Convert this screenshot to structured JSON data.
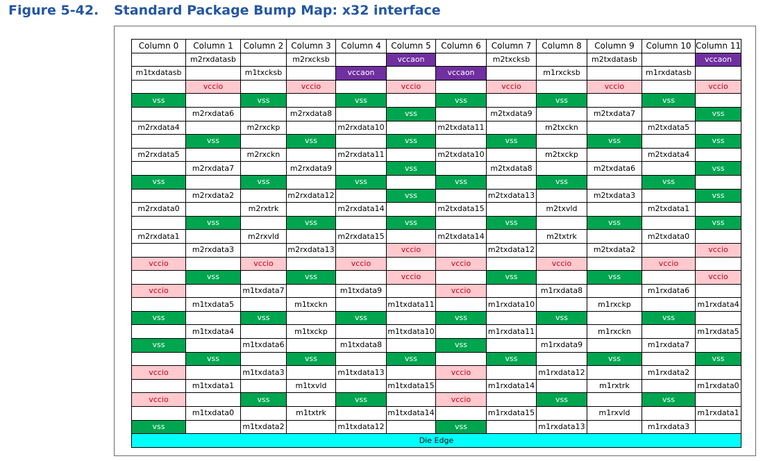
{
  "figure": {
    "number": "Figure 5-42.",
    "title": "Standard Package Bump Map: x32 interface"
  },
  "colors": {
    "vss": "#00a550",
    "vccio": "#ffc9ce",
    "vccaon": "#7030a0",
    "die_edge": "#00ffff",
    "title": "#2456a4"
  },
  "table": {
    "headers": [
      "Column 0",
      "Column 1",
      "Column 2",
      "Column 3",
      "Column 4",
      "Column 5",
      "Column 6",
      "Column 7",
      "Column 8",
      "Column 9",
      "Column 10",
      "Column 11"
    ],
    "rows": [
      [
        "",
        "m2rxdatasb",
        "",
        "m2rxcksb",
        "",
        "vccaon",
        "",
        "m2txcksb",
        "",
        "m2txdatasb",
        "",
        "vccaon"
      ],
      [
        "m1txdatasb",
        "",
        "m1txcksb",
        "",
        "vccaon",
        "",
        "vccaon",
        "",
        "m1rxcksb",
        "",
        "m1rxdatasb",
        ""
      ],
      [
        "",
        "vccio",
        "",
        "vccio",
        "",
        "vccio",
        "",
        "vccio",
        "",
        "vccio",
        "",
        "vccio"
      ],
      [
        "vss",
        "",
        "vss",
        "",
        "vss",
        "",
        "vss",
        "",
        "vss",
        "",
        "vss",
        ""
      ],
      [
        "",
        "m2rxdata6",
        "",
        "m2rxdata8",
        "",
        "vss",
        "",
        "m2txdata9",
        "",
        "m2txdata7",
        "",
        "vss"
      ],
      [
        "m2rxdata4",
        "",
        "m2rxckp",
        "",
        "m2rxdata10",
        "",
        "m2txdata11",
        "",
        "m2txckn",
        "",
        "m2txdata5",
        ""
      ],
      [
        "",
        "vss",
        "",
        "vss",
        "",
        "vss",
        "",
        "vss",
        "",
        "vss",
        "",
        "vss"
      ],
      [
        "m2rxdata5",
        "",
        "m2rxckn",
        "",
        "m2rxdata11",
        "",
        "m2txdata10",
        "",
        "m2txckp",
        "",
        "m2txdata4",
        ""
      ],
      [
        "",
        "m2rxdata7",
        "",
        "m2rxdata9",
        "",
        "vss",
        "",
        "m2txdata8",
        "",
        "m2txdata6",
        "",
        "vss"
      ],
      [
        "vss",
        "",
        "vss",
        "",
        "vss",
        "",
        "vss",
        "",
        "vss",
        "",
        "vss",
        ""
      ],
      [
        "",
        "m2rxdata2",
        "",
        "m2rxdata12",
        "",
        "vss",
        "",
        "m2txdata13",
        "",
        "m2txdata3",
        "",
        "vss"
      ],
      [
        "m2rxdata0",
        "",
        "m2rxtrk",
        "",
        "m2rxdata14",
        "",
        "m2txdata15",
        "",
        "m2txvld",
        "",
        "m2txdata1",
        ""
      ],
      [
        "",
        "vss",
        "",
        "vss",
        "",
        "vss",
        "",
        "vss",
        "",
        "vss",
        "",
        "vss"
      ],
      [
        "m2rxdata1",
        "",
        "m2rxvld",
        "",
        "m2rxdata15",
        "",
        "m2txdata14",
        "",
        "m2txtrk",
        "",
        "m2txdata0",
        ""
      ],
      [
        "",
        "m2rxdata3",
        "",
        "m2rxdata13",
        "",
        "vccio",
        "",
        "m2txdata12",
        "",
        "m2txdata2",
        "",
        "vccio"
      ],
      [
        "vccio",
        "",
        "vccio",
        "",
        "vccio",
        "",
        "vccio",
        "",
        "vccio",
        "",
        "vccio",
        ""
      ],
      [
        "",
        "vss",
        "",
        "vss",
        "",
        "vccio",
        "",
        "vss",
        "",
        "vss",
        "",
        "vccio"
      ],
      [
        "vccio",
        "",
        "m1txdata7",
        "",
        "m1txdata9",
        "",
        "vccio",
        "",
        "m1rxdata8",
        "",
        "m1rxdata6",
        ""
      ],
      [
        "",
        "m1txdata5",
        "",
        "m1txckn",
        "",
        "m1txdata11",
        "",
        "m1rxdata10",
        "",
        "m1rxckp",
        "",
        "m1rxdata4"
      ],
      [
        "vss",
        "",
        "vss",
        "",
        "vss",
        "",
        "vss",
        "",
        "vss",
        "",
        "vss",
        ""
      ],
      [
        "",
        "m1txdata4",
        "",
        "m1txckp",
        "",
        "m1txdata10",
        "",
        "m1rxdata11",
        "",
        "m1rxckn",
        "",
        "m1rxdata5"
      ],
      [
        "vss",
        "",
        "m1txdata6",
        "",
        "m1txdata8",
        "",
        "vss",
        "",
        "m1rxdata9",
        "",
        "m1rxdata7",
        ""
      ],
      [
        "",
        "vss",
        "",
        "vss",
        "",
        "vss",
        "",
        "vss",
        "",
        "vss",
        "",
        "vss"
      ],
      [
        "vccio",
        "",
        "m1txdata3",
        "",
        "m1txdata13",
        "",
        "vccio",
        "",
        "m1rxdata12",
        "",
        "m1rxdata2",
        ""
      ],
      [
        "",
        "m1txdata1",
        "",
        "m1txvld",
        "",
        "m1txdata15",
        "",
        "m1rxdata14",
        "",
        "m1rxtrk",
        "",
        "m1rxdata0"
      ],
      [
        "vccio",
        "",
        "vss",
        "",
        "vss",
        "",
        "vccio",
        "",
        "vss",
        "",
        "vss",
        ""
      ],
      [
        "",
        "m1txdata0",
        "",
        "m1txtrk",
        "",
        "m1txdata14",
        "",
        "m1rxdata15",
        "",
        "m1rxvld",
        "",
        "m1rxdata1"
      ],
      [
        "vss",
        "",
        "m1txdata2",
        "",
        "m1txdata12",
        "",
        "vss",
        "",
        "m1rxdata13",
        "",
        "m1rxdata3",
        ""
      ]
    ],
    "die_edge_label": "Die Edge"
  }
}
